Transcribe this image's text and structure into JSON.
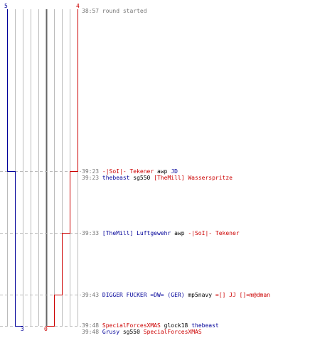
{
  "colors": {
    "team_blue": "#000099",
    "team_red": "#cc0000",
    "grid": "#bbbbbb",
    "center_line": "#666666",
    "dashed": "#bbbbbb",
    "time_text": "#777777"
  },
  "counts": {
    "blue_start": "5",
    "red_start": "4",
    "blue_end": "3",
    "red_end": "0"
  },
  "log": [
    {
      "time": "38:57",
      "kind": "status",
      "text": "round started"
    },
    {
      "time": "39:23",
      "kind": "kill",
      "killer": "-|SoI|- Tekener",
      "killer_team": "red",
      "weapon": "awp",
      "victim": "JD",
      "victim_team": "blue"
    },
    {
      "time": "39:23",
      "kind": "kill",
      "killer": "thebeast",
      "killer_team": "blue",
      "weapon": "sg550",
      "victim": "[TheMill] Wasserspritze",
      "victim_team": "red"
    },
    {
      "time": "39:33",
      "kind": "kill",
      "killer": "[TheMill] Luftgewehr",
      "killer_team": "blue",
      "weapon": "awp",
      "victim": "-|SoI|- Tekener",
      "victim_team": "red"
    },
    {
      "time": "39:43",
      "kind": "kill",
      "killer": "DIGGER FUCKER =DW= (GER)",
      "killer_team": "blue",
      "weapon": "mp5navy",
      "victim": "=[] JJ []=m@dman",
      "victim_team": "red"
    },
    {
      "time": "39:48",
      "kind": "kill",
      "killer": "SpecialForcesXMAS",
      "killer_team": "red",
      "weapon": "glock18",
      "victim": "thebeast",
      "victim_team": "blue"
    },
    {
      "time": "39:48",
      "kind": "kill",
      "killer": "Grusy",
      "killer_team": "blue",
      "weapon": "sg550",
      "victim": "SpecialForcesXMAS",
      "victim_team": "red"
    }
  ]
}
